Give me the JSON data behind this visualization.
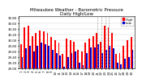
{
  "title": "Milwaukee Weather - Barometric Pressure\nDaily High/Low",
  "ylim": [
    29.0,
    30.85
  ],
  "yticks": [
    29.0,
    29.2,
    29.4,
    29.6,
    29.8,
    30.0,
    30.2,
    30.4,
    30.6,
    30.8
  ],
  "ytick_labels": [
    "29.00",
    "29.20",
    "29.40",
    "29.60",
    "29.80",
    "30.00",
    "30.20",
    "30.40",
    "30.60",
    "30.80"
  ],
  "bar_width": 0.4,
  "color_high": "#FF0000",
  "color_low": "#0000CC",
  "background_color": "#FFFFFF",
  "days": [
    "1",
    "2",
    "3",
    "4",
    "5",
    "6",
    "7",
    "8",
    "9",
    "10",
    "11",
    "12",
    "13",
    "14",
    "15",
    "16",
    "17",
    "18",
    "19",
    "20",
    "21",
    "22",
    "23",
    "24",
    "25",
    "26",
    "27",
    "28",
    "29",
    "30"
  ],
  "high": [
    29.85,
    30.45,
    30.5,
    30.15,
    30.25,
    30.35,
    30.3,
    30.25,
    30.1,
    30.0,
    29.9,
    29.5,
    30.05,
    30.0,
    29.95,
    29.65,
    29.6,
    29.9,
    30.05,
    30.15,
    30.25,
    29.95,
    30.5,
    30.45,
    30.25,
    29.5,
    29.55,
    29.8,
    30.0,
    30.1
  ],
  "low": [
    29.4,
    29.7,
    29.8,
    29.6,
    29.8,
    29.9,
    29.85,
    29.8,
    29.65,
    29.55,
    29.45,
    29.05,
    29.4,
    29.55,
    29.6,
    29.2,
    29.1,
    29.55,
    29.75,
    29.75,
    29.85,
    29.55,
    29.65,
    29.8,
    29.7,
    29.2,
    29.15,
    29.35,
    29.4,
    29.65
  ],
  "title_fontsize": 4.0,
  "tick_fontsize": 2.8,
  "legend_fontsize": 3.0,
  "dashed_lines": [
    21,
    22,
    23,
    24
  ],
  "dot_markers_high": [
    21,
    22,
    23,
    24,
    29
  ],
  "dot_markers_low": [
    21,
    22,
    23,
    24
  ]
}
